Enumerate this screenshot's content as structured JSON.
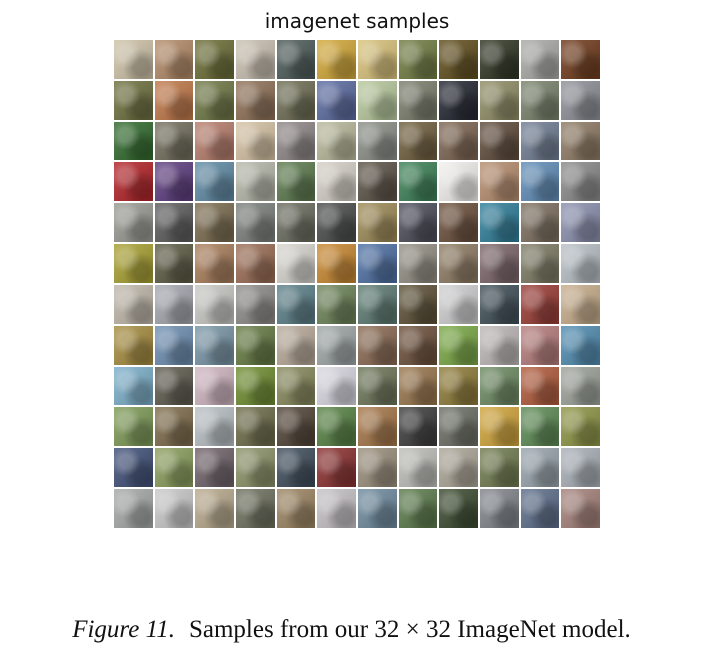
{
  "figure": {
    "title": "imagenet samples",
    "caption_label": "Figure 11.",
    "caption_text": "Samples from our 32 × 32 ImageNet model."
  },
  "grid": {
    "rows": 12,
    "cols": 12,
    "tiles": [
      [
        "#cfc3a8",
        "#b38a66",
        "#6b6d35",
        "#c9c0b1",
        "#4c5a58",
        "#d3a837",
        "#d9c27a",
        "#6f7d42",
        "#5f4d1b",
        "#2f3523",
        "#a9a9a6",
        "#6f3a1b"
      ],
      [
        "#6d6f3d",
        "#c17848",
        "#6e7744",
        "#8e7056",
        "#6c6d53",
        "#5a6aa0",
        "#b7c89c",
        "#7a7d6b",
        "#222630",
        "#8e8c64",
        "#79826b",
        "#8d9097"
      ],
      [
        "#2f6a2c",
        "#726c5c",
        "#b77d6b",
        "#d6c2a3",
        "#8f8686",
        "#b8b89b",
        "#8a8f86",
        "#6f5e3d",
        "#7d6450",
        "#5e4a3b",
        "#6f7d93",
        "#8d7a63"
      ],
      [
        "#b32227",
        "#5d3c7f",
        "#5f8aa4",
        "#b6b8aa",
        "#5c7a4d",
        "#d6d0c7",
        "#5b5246",
        "#3b8055",
        "#f2f1ee",
        "#b68d6e",
        "#5f8cb7",
        "#8a8a8a"
      ],
      [
        "#9a9a94",
        "#5b5b5b",
        "#7a6b4e",
        "#7b807c",
        "#6a6b5e",
        "#4a4b4b",
        "#9d8a56",
        "#4a4c58",
        "#6a4e3a",
        "#2e7d99",
        "#7b6e5e",
        "#8b8fae"
      ],
      [
        "#a8a030",
        "#5c5a43",
        "#a97d5a",
        "#9a6c54",
        "#d8d6d0",
        "#c8872f",
        "#4d6fa3",
        "#928d83",
        "#8d7a61",
        "#7a6468",
        "#7d7a63",
        "#b8c0c6"
      ],
      [
        "#bfb7aa",
        "#a3a7ae",
        "#c8c8c4",
        "#8d8b88",
        "#5a7f88",
        "#6c8357",
        "#5c7a71",
        "#5c4f36",
        "#cfcfd1",
        "#3f4e56",
        "#9a3a34",
        "#c7ad8b"
      ],
      [
        "#a58c3e",
        "#6c8db1",
        "#7895a6",
        "#657a42",
        "#b8aa9a",
        "#9fa6a6",
        "#8a6a52",
        "#6b4f3a",
        "#79a844",
        "#bdb7b6",
        "#b47b7a",
        "#4f8cb1"
      ],
      [
        "#7baec9",
        "#5d5a4d",
        "#d0b5c0",
        "#6e8c2f",
        "#86895c",
        "#d9d8e2",
        "#6b7558",
        "#99754c",
        "#8d7a37",
        "#6c8a61",
        "#b15a3b",
        "#9ca29a"
      ],
      [
        "#7d9a56",
        "#7e6b4b",
        "#b8bfc4",
        "#6d6b48",
        "#514336",
        "#568243",
        "#a57648",
        "#3a3c3b",
        "#6b6e64",
        "#d0a43a",
        "#5b8a53",
        "#8d9444"
      ],
      [
        "#3f4f78",
        "#8a9e5b",
        "#6e6269",
        "#8b9167",
        "#3d4c5a",
        "#8b2f2f",
        "#9a8e7b",
        "#bdbdb8",
        "#aca597",
        "#6f7b4f",
        "#97a3ab",
        "#a9b0b8"
      ],
      [
        "#a6a9a9",
        "#c9c9c9",
        "#b8a98c",
        "#6d6f5d",
        "#9c8562",
        "#c6c2c6",
        "#6d8a9e",
        "#5a7a4b",
        "#3b4a2f",
        "#80858b",
        "#5c6d8a",
        "#a5817a"
      ]
    ]
  }
}
